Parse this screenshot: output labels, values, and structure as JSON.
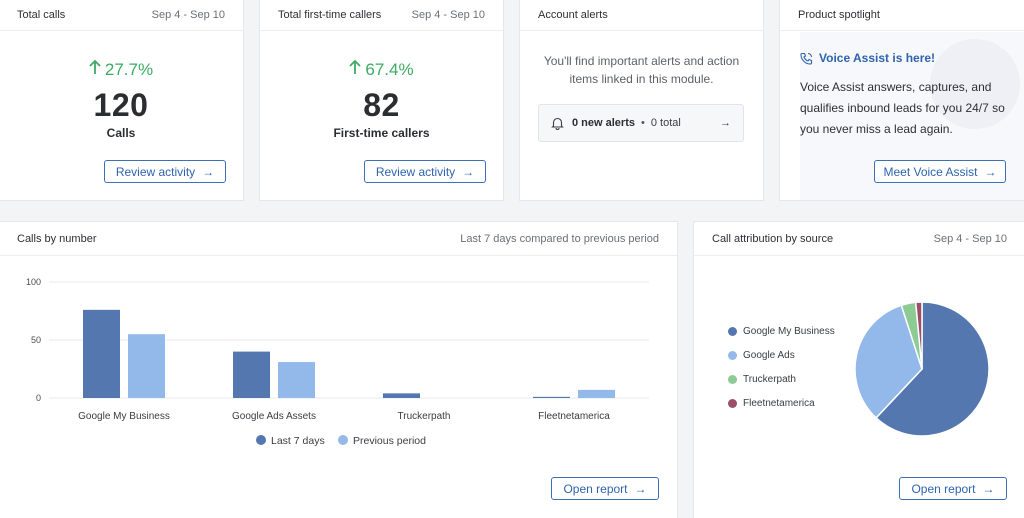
{
  "cards": {
    "total_calls": {
      "title": "Total calls",
      "range": "Sep 4 - Sep 10",
      "pct": "27.7%",
      "value": "120",
      "label": "Calls",
      "button": "Review activity"
    },
    "first_time": {
      "title": "Total first-time callers",
      "range": "Sep 4 - Sep 10",
      "pct": "67.4%",
      "value": "82",
      "label": "First-time callers",
      "button": "Review activity"
    },
    "alerts": {
      "title": "Account alerts",
      "text_line1": "You'll find important alerts and action",
      "text_line2": "items linked in this module.",
      "new_alerts": "0 new alerts",
      "total": "0 total"
    },
    "spotlight": {
      "title": "Product spotlight",
      "headline": "Voice Assist is here!",
      "body_line1": "Voice Assist answers, captures, and",
      "body_line2": "qualifies inbound leads for you 24/7 so",
      "body_line3": "you never miss a lead again.",
      "button": "Meet Voice Assist"
    },
    "calls_by_number": {
      "title": "Calls by number",
      "meta": "Last 7 days compared to previous period",
      "button": "Open report"
    },
    "attribution": {
      "title": "Call attribution by source",
      "range": "Sep 4 - Sep 10",
      "button": "Open report"
    }
  },
  "colors": {
    "current": "#5477b0",
    "previous": "#93b9ea",
    "green": "#8dcb95",
    "maroon": "#9b4f6b"
  },
  "chart_data": [
    {
      "type": "bar",
      "title": "",
      "categories": [
        "Google My Business",
        "Google Ads Assets",
        "Truckerpath",
        "Fleetnetamerica"
      ],
      "series": [
        {
          "name": "Last 7 days",
          "values": [
            76,
            40,
            4,
            1
          ]
        },
        {
          "name": "Previous period",
          "values": [
            55,
            31,
            0,
            7
          ]
        }
      ],
      "yticks": [
        "0",
        "50",
        "100"
      ],
      "ylim": [
        0,
        100
      ],
      "legend": "bottom"
    },
    {
      "type": "pie",
      "title": "",
      "labels": [
        "Google My Business",
        "Google Ads",
        "Truckerpath",
        "Fleetnetamerica"
      ],
      "values": [
        62,
        33,
        3.5,
        1.5
      ],
      "legend": "left"
    }
  ]
}
